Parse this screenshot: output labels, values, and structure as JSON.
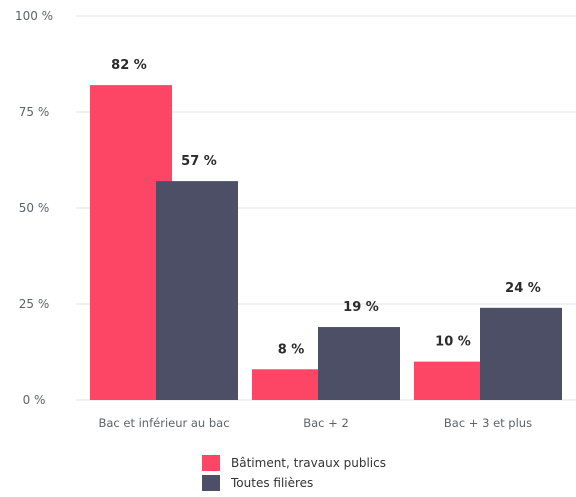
{
  "chart_data": {
    "type": "bar",
    "categories": [
      "Bac et inférieur au bac",
      "Bac + 2",
      "Bac + 3 et plus"
    ],
    "series": [
      {
        "name": "Bâtiment, travaux publics",
        "values": [
          82,
          8,
          10
        ],
        "labels": [
          "82 %",
          "8 %",
          "10 %"
        ],
        "color": "#fd4565"
      },
      {
        "name": "Toutes filières",
        "values": [
          57,
          19,
          24
        ],
        "labels": [
          "57 %",
          "19 %",
          "24 %"
        ],
        "color": "#4c4f66"
      }
    ],
    "ylim": [
      0,
      100
    ],
    "yticks": [
      0,
      25,
      50,
      75,
      100
    ],
    "ytick_labels": [
      "0 %",
      "25 %",
      "50 %",
      "75 %",
      "100 %"
    ],
    "grid": true,
    "legend_position": "bottom-center"
  }
}
